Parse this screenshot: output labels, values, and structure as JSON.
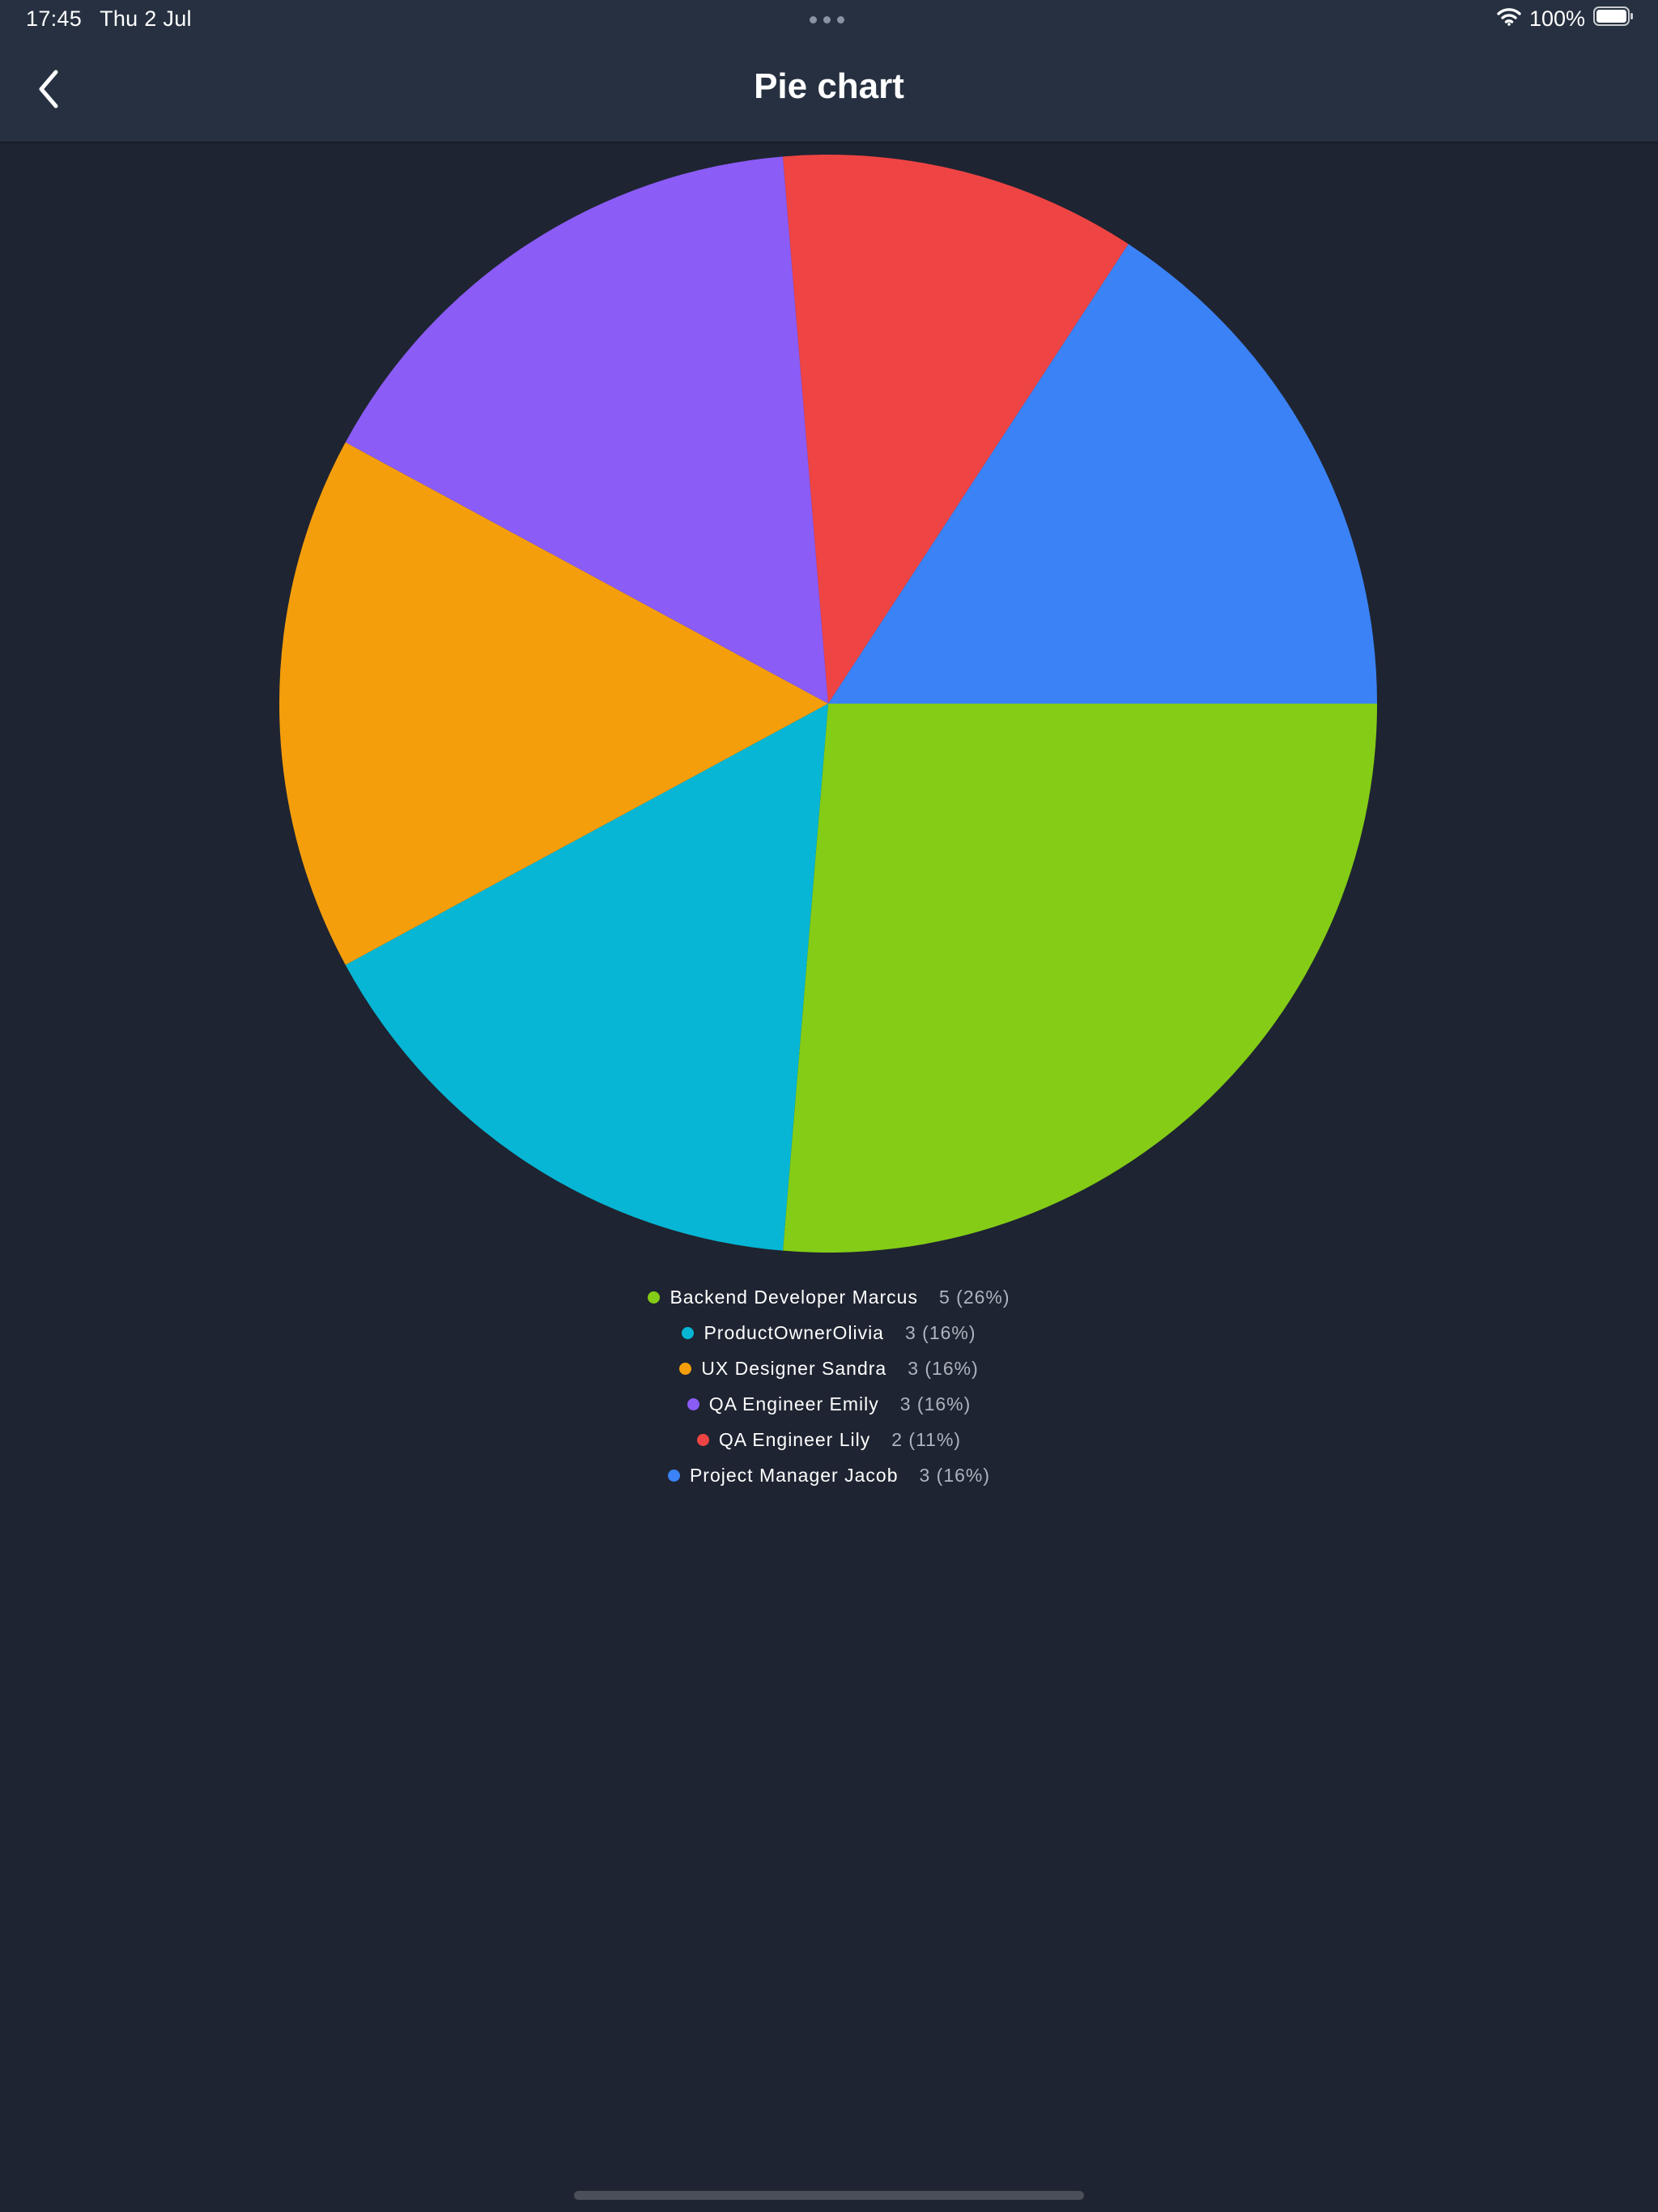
{
  "status_bar": {
    "time": "17:45",
    "date": "Thu 2 Jul",
    "battery": "100%",
    "wifi_icon": "wifi-icon",
    "battery_icon": "battery-icon"
  },
  "nav": {
    "title": "Pie chart",
    "back_icon": "chevron-left-icon"
  },
  "chart_data": {
    "type": "pie",
    "title": "",
    "slices": [
      {
        "label": "Backend Developer Marcus",
        "value": 5,
        "percent_label": "5 (26%)",
        "color": "#84cc16"
      },
      {
        "label": "ProductOwnerOlivia",
        "value": 3,
        "percent_label": "3 (16%)",
        "color": "#06b6d4"
      },
      {
        "label": "UX Designer Sandra",
        "value": 3,
        "percent_label": "3 (16%)",
        "color": "#f59e0b"
      },
      {
        "label": "QA Engineer Emily",
        "value": 3,
        "percent_label": "3 (16%)",
        "color": "#8b5cf6"
      },
      {
        "label": "QA Engineer Lily",
        "value": 2,
        "percent_label": "2 (11%)",
        "color": "#ef4444"
      },
      {
        "label": "Project Manager Jacob",
        "value": 3,
        "percent_label": "3 (16%)",
        "color": "#3b82f6"
      }
    ],
    "start": "3 o'clock",
    "direction": "clockwise",
    "legend_position": "bottom"
  },
  "colors": {
    "background": "#1e2431",
    "bar": "#263040"
  }
}
